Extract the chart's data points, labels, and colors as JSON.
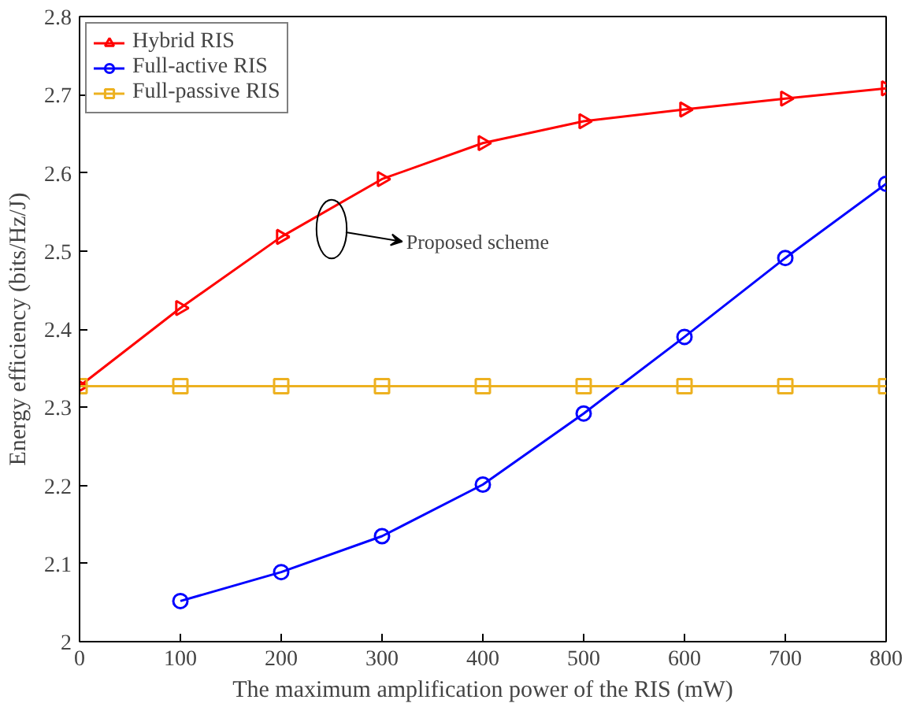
{
  "chart_data": {
    "type": "line",
    "xlabel": "The maximum amplification power of the RIS (mW)",
    "ylabel": "Energy efficiency (bits/Hz/J)",
    "x": [
      0,
      100,
      200,
      300,
      400,
      500,
      600,
      700,
      800
    ],
    "series": [
      {
        "name": "Hybrid RIS",
        "color": "#ff0000",
        "marker": "triangle",
        "values": [
          2.327,
          2.427,
          2.518,
          2.592,
          2.638,
          2.666,
          2.681,
          2.695,
          2.708
        ]
      },
      {
        "name": "Full-active RIS",
        "color": "#0000ff",
        "marker": "circle",
        "values": [
          null,
          2.052,
          2.089,
          2.135,
          2.201,
          2.292,
          2.39,
          2.491,
          2.586
        ]
      },
      {
        "name": "Full-passive RIS",
        "color": "#edb120",
        "marker": "square",
        "values": [
          2.327,
          2.327,
          2.327,
          2.327,
          2.327,
          2.327,
          2.327,
          2.327,
          2.327
        ]
      }
    ],
    "xlim": [
      0,
      800
    ],
    "ylim": [
      2,
      2.8
    ],
    "xticks": [
      0,
      100,
      200,
      300,
      400,
      500,
      600,
      700,
      800
    ],
    "yticks": [
      2,
      2.1,
      2.2,
      2.3,
      2.4,
      2.5,
      2.6,
      2.7,
      2.8
    ],
    "annotations": [
      "Proposed scheme"
    ],
    "grid": false,
    "legend": "top left",
    "line_style": "solid"
  }
}
